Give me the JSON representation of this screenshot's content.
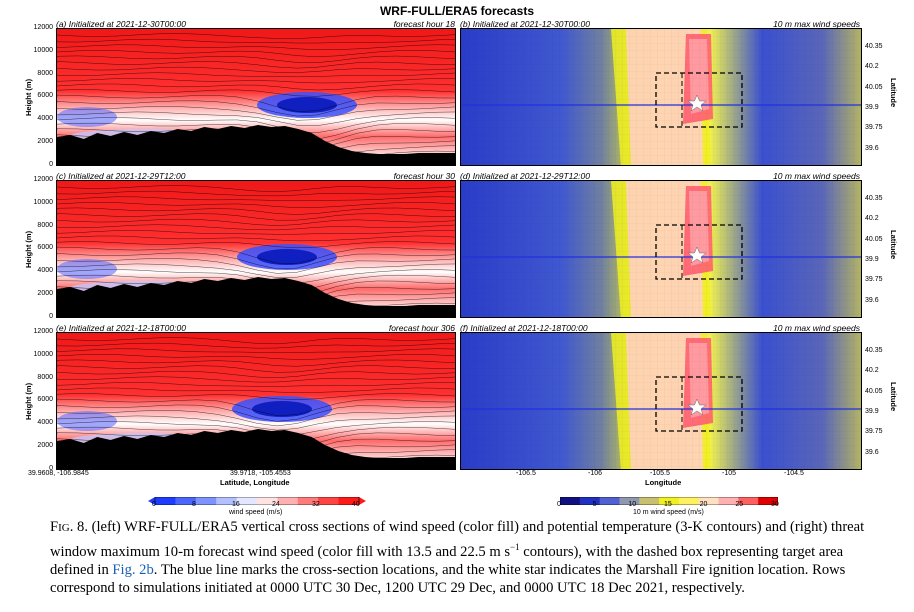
{
  "figure_title": "WRF-FULL/ERA5 forecasts",
  "rows": [
    {
      "left_title": "(a) Initialized at 2021-12-30T00:00",
      "left_hour": "forecast hour 18",
      "right_title": "(b) Initialized at 2021-12-30T00:00",
      "right_label": "10 m max wind speeds"
    },
    {
      "left_title": "(c) Initialized at 2021-12-29T12:00",
      "left_hour": "forecast hour 30",
      "right_title": "(d) Initialized at 2021-12-29T12:00",
      "right_label": "10 m max wind speeds"
    },
    {
      "left_title": "(e) Initialized at 2021-12-18T00:00",
      "left_hour": "forecast hour 306",
      "right_title": "(f) Initialized at 2021-12-18T00:00",
      "right_label": "10 m max wind speeds"
    }
  ],
  "height_axis": {
    "label": "Height (m)",
    "ticks": [
      "12000",
      "10000",
      "8000",
      "6000",
      "4000",
      "2000",
      "0"
    ]
  },
  "lat_axis": {
    "label": "Latitude",
    "ticks": [
      "40.35",
      "40.2",
      "40.05",
      "39.9",
      "39.75",
      "39.6"
    ]
  },
  "left_x_axis": {
    "label": "Latitude, Longitude",
    "tick_left": "39.9608, -106.9845",
    "tick_mid": "39.9718, -105.4553"
  },
  "right_x_axis": {
    "label": "Longitude",
    "ticks": [
      "-106.5",
      "-106",
      "-105.5",
      "-105",
      "-104.5"
    ]
  },
  "left_colorbar": {
    "label": "wind speed (m/s)",
    "ticks": [
      "0",
      "8",
      "16",
      "24",
      "32",
      "40"
    ],
    "colors": [
      "#1e3cff",
      "#4a66ff",
      "#7d93ff",
      "#b3c0ff",
      "#e3e7ff",
      "#ffe3e3",
      "#ffb0b0",
      "#ff7a7a",
      "#ff4444",
      "#ff1a1a"
    ]
  },
  "right_colorbar": {
    "label": "10 m wind speed (m/s)",
    "ticks": [
      "0",
      "5",
      "10",
      "15",
      "20",
      "25",
      "30"
    ],
    "colors": [
      "#101080",
      "#2030c0",
      "#5060d0",
      "#9098b0",
      "#c8c070",
      "#f0f020",
      "#fff060",
      "#ffe0c0",
      "#ffb0b0",
      "#ff6060",
      "#e00000"
    ]
  },
  "caption": {
    "prefix": "F",
    "smallcaps": "IG",
    "number": ". 8. ",
    "text1": "(left) WRF-FULL/ERA5 vertical cross sections of wind speed (color fill) and potential temperature (3-K contours) and (right) threat window maximum 10-m forecast wind speed (color fill with 13.5 and 22.5 m s",
    "superscript": "−1",
    "text2": " contours), with the dashed box representing target area defined in ",
    "link": "Fig. 2b",
    "text3": ". The blue line marks the cross-section locations, and the white star indicates the Marshall Fire ignition location. Rows correspond to simulations initiated at 0000 UTC 30 Dec, 1200 UTC 29 Dec, and 0000 UTC 18 Dec 2021, respectively."
  }
}
